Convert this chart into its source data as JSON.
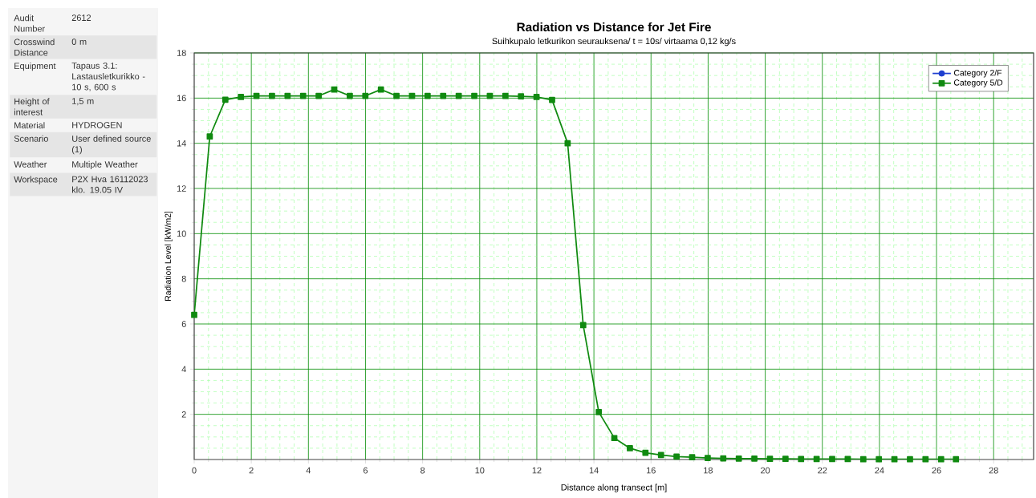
{
  "chart_data": {
    "type": "line",
    "title": "Radiation vs Distance for Jet Fire",
    "subtitle": "Suihkupalo letkurikon seurauksena/ t = 10s/ virtaama 0,12 kg/s",
    "xlabel": "Distance along transect [m]",
    "ylabel": "Radiation Level [kW/m2]",
    "x": [
      0,
      0.545,
      1.09,
      1.635,
      2.18,
      2.725,
      3.27,
      3.815,
      4.36,
      4.905,
      5.45,
      5.995,
      6.54,
      7.085,
      7.63,
      8.175,
      8.72,
      9.265,
      9.81,
      10.355,
      10.9,
      11.445,
      11.99,
      12.535,
      13.08,
      13.625,
      14.17,
      14.715,
      15.26,
      15.805,
      16.35,
      16.895,
      17.44,
      17.985,
      18.53,
      19.075,
      19.62,
      20.165,
      20.71,
      21.255,
      21.8,
      22.345,
      22.89,
      23.435,
      23.98,
      24.525,
      25.07,
      25.615,
      26.16,
      26.68
    ],
    "series": [
      {
        "name": "Category 2/F",
        "color": "#1f3fd0",
        "marker": "circle",
        "values": [
          null,
          null,
          null,
          null,
          null,
          null,
          null,
          null,
          null,
          null,
          null,
          null,
          null,
          null,
          null,
          null,
          null,
          null,
          null,
          null,
          null,
          null,
          null,
          null,
          null,
          null,
          null,
          null,
          null,
          null,
          null,
          null,
          null,
          null,
          null,
          null,
          null,
          null,
          null,
          null,
          null,
          null,
          null,
          null,
          null,
          null,
          null,
          null,
          null,
          null
        ]
      },
      {
        "name": "Category 5/D",
        "color": "#108a10",
        "marker": "square",
        "values": [
          6.4,
          14.3,
          15.93,
          16.05,
          16.1,
          16.1,
          16.1,
          16.1,
          16.1,
          16.38,
          16.1,
          16.1,
          16.38,
          16.1,
          16.1,
          16.1,
          16.1,
          16.1,
          16.1,
          16.1,
          16.1,
          16.08,
          16.05,
          15.92,
          14.0,
          5.95,
          2.1,
          0.95,
          0.5,
          0.3,
          0.2,
          0.13,
          0.1,
          0.07,
          0.05,
          0.04,
          0.04,
          0.03,
          0.03,
          0.02,
          0.02,
          0.02,
          0.02,
          0.01,
          0.01,
          0.01,
          0.01,
          0.01,
          0.01,
          0.01
        ]
      }
    ],
    "xlim": [
      0,
      29.4
    ],
    "ylim": [
      0,
      18
    ],
    "xticks": [
      0,
      {
        "value": 0.5,
        "label": null
      },
      {
        "value": 1,
        "label": null
      },
      {
        "value": 1.5,
        "label": null
      },
      2,
      {
        "value": 2.5,
        "label": null
      },
      {
        "value": 3,
        "label": null
      },
      {
        "value": 3.5,
        "label": null
      },
      4,
      {
        "value": 4.5,
        "label": null
      },
      {
        "value": 5,
        "label": null
      },
      {
        "value": 5.5,
        "label": null
      },
      6,
      {
        "value": 6.5,
        "label": null
      },
      {
        "value": 7,
        "label": null
      },
      {
        "value": 7.5,
        "label": null
      },
      8,
      {
        "value": 8.5,
        "label": null
      },
      {
        "value": 9,
        "label": null
      },
      {
        "value": 9.5,
        "label": null
      },
      10,
      {
        "value": 10.5,
        "label": null
      },
      {
        "value": 11,
        "label": null
      },
      {
        "value": 11.5,
        "label": null
      },
      12,
      {
        "value": 12.5,
        "label": null
      },
      {
        "value": 13,
        "label": null
      },
      {
        "value": 13.5,
        "label": null
      },
      14,
      {
        "value": 14.5,
        "label": null
      },
      {
        "value": 15,
        "label": null
      },
      {
        "value": 15.5,
        "label": null
      },
      16,
      {
        "value": 16.5,
        "label": null
      },
      {
        "value": 17,
        "label": null
      },
      {
        "value": 17.5,
        "label": null
      },
      18,
      {
        "value": 18.5,
        "label": null
      },
      {
        "value": 19,
        "label": null
      },
      {
        "value": 19.5,
        "label": null
      },
      20,
      {
        "value": 20.5,
        "label": null
      },
      {
        "value": 21,
        "label": null
      },
      {
        "value": 21.5,
        "label": null
      },
      22,
      {
        "value": 22.5,
        "label": null
      },
      {
        "value": 23,
        "label": null
      },
      {
        "value": 23.5,
        "label": null
      },
      24,
      {
        "value": 24.5,
        "label": null
      },
      {
        "value": 25,
        "label": null
      },
      {
        "value": 25.5,
        "label": null
      },
      26,
      {
        "value": 26.5,
        "label": null
      },
      {
        "value": 27,
        "label": null
      },
      {
        "value": 27.5,
        "label": null
      },
      28,
      {
        "value": 28.5,
        "label": null
      },
      {
        "value": 29,
        "label": null
      }
    ],
    "yticks": [
      {
        "value": 0.5,
        "label": null
      },
      {
        "value": 1,
        "label": null
      },
      {
        "value": 1.5,
        "label": null
      },
      2,
      {
        "value": 2.5,
        "label": null
      },
      {
        "value": 3,
        "label": null
      },
      {
        "value": 3.5,
        "label": null
      },
      4,
      {
        "value": 4.5,
        "label": null
      },
      {
        "value": 5,
        "label": null
      },
      {
        "value": 5.5,
        "label": null
      },
      6,
      {
        "value": 6.5,
        "label": null
      },
      {
        "value": 7,
        "label": null
      },
      {
        "value": 7.5,
        "label": null
      },
      8,
      {
        "value": 8.5,
        "label": null
      },
      {
        "value": 9,
        "label": null
      },
      {
        "value": 9.5,
        "label": null
      },
      10,
      {
        "value": 10.5,
        "label": null
      },
      {
        "value": 11,
        "label": null
      },
      {
        "value": 11.5,
        "label": null
      },
      12,
      {
        "value": 12.5,
        "label": null
      },
      {
        "value": 13,
        "label": null
      },
      {
        "value": 13.5,
        "label": null
      },
      14,
      {
        "value": 14.5,
        "label": null
      },
      {
        "value": 15,
        "label": null
      },
      {
        "value": 15.5,
        "label": null
      },
      16,
      {
        "value": 16.5,
        "label": null
      },
      {
        "value": 17,
        "label": null
      },
      {
        "value": 17.5,
        "label": null
      },
      18
    ],
    "grid": true,
    "legend": "top right",
    "annotations": [
      "Audit Number",
      "2612",
      "Crosswind Distance",
      "0 m",
      "Equipment",
      "Tapaus 3.1: Lastausletkurikko - 10 s, 600 s",
      "Height of interest",
      "1,5 m",
      "Material",
      "HYDROGEN",
      "Scenario",
      "User defined source (1)",
      "Weather",
      "Multiple Weather",
      "Workspace",
      "P2X Hva 16112023 klo. 19.05 IV"
    ]
  }
}
